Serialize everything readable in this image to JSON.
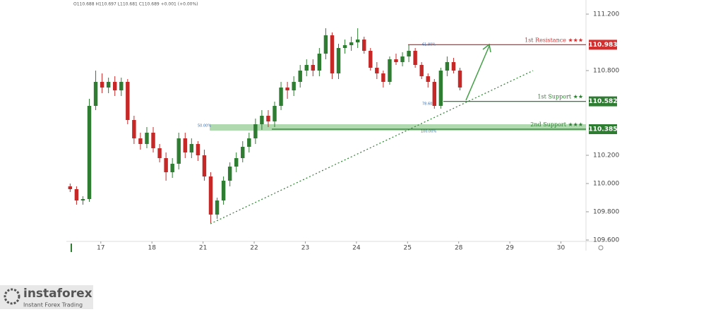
{
  "chart_data": {
    "type": "candlestick",
    "title": "O110.688 H110.697 L110.681 C110.689 +0.001 (+0.00%)",
    "x": [
      -0.6,
      -0.475,
      -0.35,
      -0.225,
      -0.1,
      0.025,
      0.15,
      0.275,
      0.4,
      0.525,
      0.65,
      0.775,
      0.9,
      1.025,
      1.15,
      1.275,
      1.4,
      1.525,
      1.65,
      1.775,
      1.9,
      2.025,
      2.15,
      2.275,
      2.4,
      2.525,
      2.65,
      2.775,
      2.9,
      3.025,
      3.15,
      3.275,
      3.4,
      3.525,
      3.65,
      3.775,
      3.9,
      4.025,
      4.15,
      4.275,
      4.4,
      4.525,
      4.65,
      4.775,
      4.9,
      5.025,
      5.15,
      5.275,
      5.4,
      5.525,
      5.65,
      5.775,
      5.9,
      6.025,
      6.15,
      6.275,
      6.4,
      6.525,
      6.65,
      6.775,
      6.9,
      7.025
    ],
    "open": [
      109.98,
      109.96,
      109.88,
      109.89,
      110.55,
      110.72,
      110.68,
      110.72,
      110.66,
      110.72,
      110.45,
      110.32,
      110.28,
      110.36,
      110.25,
      110.18,
      110.08,
      110.14,
      110.32,
      110.22,
      110.28,
      110.2,
      110.05,
      109.78,
      109.88,
      110.02,
      110.12,
      110.18,
      110.26,
      110.32,
      110.42,
      110.48,
      110.44,
      110.55,
      110.68,
      110.66,
      110.72,
      110.8,
      110.84,
      110.8,
      110.92,
      111.05,
      110.78,
      110.96,
      110.98,
      111.0,
      111.02,
      110.94,
      110.82,
      110.78,
      110.72,
      110.88,
      110.86,
      110.9,
      110.94,
      110.84,
      110.76,
      110.72,
      110.55,
      110.8,
      110.86,
      110.8
    ],
    "high": [
      110.0,
      109.98,
      109.91,
      110.6,
      110.8,
      110.78,
      110.75,
      110.76,
      110.75,
      110.74,
      110.48,
      110.36,
      110.4,
      110.4,
      110.28,
      110.22,
      110.18,
      110.36,
      110.36,
      110.32,
      110.3,
      110.24,
      110.08,
      109.9,
      110.05,
      110.15,
      110.22,
      110.3,
      110.36,
      110.46,
      110.52,
      110.52,
      110.58,
      110.72,
      110.72,
      110.76,
      110.84,
      110.88,
      110.88,
      110.96,
      111.1,
      111.07,
      110.99,
      111.02,
      111.04,
      111.1,
      111.04,
      110.96,
      110.86,
      110.8,
      110.9,
      110.92,
      110.93,
      110.98,
      110.96,
      110.86,
      110.78,
      110.74,
      110.82,
      110.9,
      110.89,
      110.82
    ],
    "low": [
      109.94,
      109.85,
      109.85,
      109.87,
      110.52,
      110.64,
      110.64,
      110.62,
      110.62,
      110.42,
      110.28,
      110.24,
      110.25,
      110.22,
      110.15,
      110.02,
      110.04,
      110.1,
      110.18,
      110.18,
      110.16,
      110.02,
      109.72,
      109.75,
      109.85,
      109.98,
      110.08,
      110.15,
      110.22,
      110.28,
      110.38,
      110.4,
      110.4,
      110.52,
      110.6,
      110.62,
      110.68,
      110.76,
      110.76,
      110.76,
      110.88,
      110.74,
      110.74,
      110.92,
      110.94,
      110.96,
      110.92,
      110.8,
      110.74,
      110.68,
      110.7,
      110.84,
      110.83,
      110.86,
      110.82,
      110.74,
      110.68,
      110.53,
      110.53,
      110.76,
      110.78,
      110.66
    ],
    "close": [
      109.96,
      109.88,
      109.89,
      110.55,
      110.72,
      110.68,
      110.72,
      110.66,
      110.72,
      110.45,
      110.32,
      110.28,
      110.36,
      110.25,
      110.18,
      110.08,
      110.14,
      110.32,
      110.22,
      110.28,
      110.2,
      110.05,
      109.78,
      109.88,
      110.02,
      110.12,
      110.18,
      110.26,
      110.32,
      110.42,
      110.48,
      110.44,
      110.55,
      110.68,
      110.66,
      110.72,
      110.8,
      110.84,
      110.8,
      110.92,
      111.05,
      110.78,
      110.96,
      110.98,
      111.0,
      111.02,
      110.94,
      110.82,
      110.78,
      110.72,
      110.88,
      110.86,
      110.9,
      110.94,
      110.84,
      110.76,
      110.72,
      110.55,
      110.8,
      110.86,
      110.8,
      110.68
    ],
    "up_color": "#2e7d32",
    "down_color": "#c62828",
    "xlim": [
      -0.66,
      9.49
    ],
    "xticks": [
      {
        "value": 0,
        "label": "17"
      },
      {
        "value": 1,
        "label": "18"
      },
      {
        "value": 2,
        "label": "21"
      },
      {
        "value": 3,
        "label": "22"
      },
      {
        "value": 4,
        "label": "23"
      },
      {
        "value": 5,
        "label": "24"
      },
      {
        "value": 6,
        "label": "25"
      },
      {
        "value": 7,
        "label": "28"
      },
      {
        "value": 8,
        "label": "29"
      },
      {
        "value": 9,
        "label": "30"
      }
    ],
    "ylim": [
      109.59,
      111.29
    ],
    "yticks": [
      {
        "value": 111.2,
        "label": "111.200"
      },
      {
        "value": 110.8,
        "label": "110.800"
      },
      {
        "value": 110.2,
        "label": "110.200"
      },
      {
        "value": 110.0,
        "label": "110.000"
      },
      {
        "value": 109.8,
        "label": "109.800"
      },
      {
        "value": 109.6,
        "label": "109.600"
      }
    ],
    "levels": [
      {
        "label": "1st Resistance ★★★",
        "value": 110.983,
        "color": "#d32f2f"
      },
      {
        "label": "1st Support ★★",
        "value": 110.582,
        "color": "#2e7d32"
      },
      {
        "label": "2nd Support ★★★",
        "value": 110.385,
        "color": "#2e7d32"
      }
    ],
    "annotations": [
      "61.80%",
      "50.00%",
      "78.60%",
      "100.00%"
    ]
  },
  "logo": {
    "name": "instaforex",
    "tagline": "Instant Forex Trading"
  }
}
